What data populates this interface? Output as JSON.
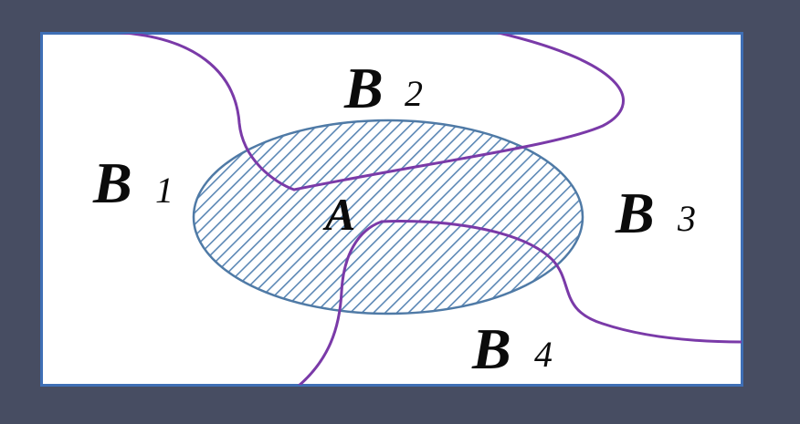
{
  "diagram": {
    "event_label": "A",
    "partitions": [
      {
        "letter": "B",
        "index": "1"
      },
      {
        "letter": "B",
        "index": "2"
      },
      {
        "letter": "B",
        "index": "3"
      },
      {
        "letter": "B",
        "index": "4"
      }
    ],
    "colors": {
      "background": "#474d62",
      "frame_border": "#3f6fb5",
      "canvas": "#ffffff",
      "ellipse_stroke": "#4f7aa6",
      "hatch": "#5b87b5",
      "partition_line": "#7a3aa8",
      "text": "#0b0b0b"
    }
  }
}
